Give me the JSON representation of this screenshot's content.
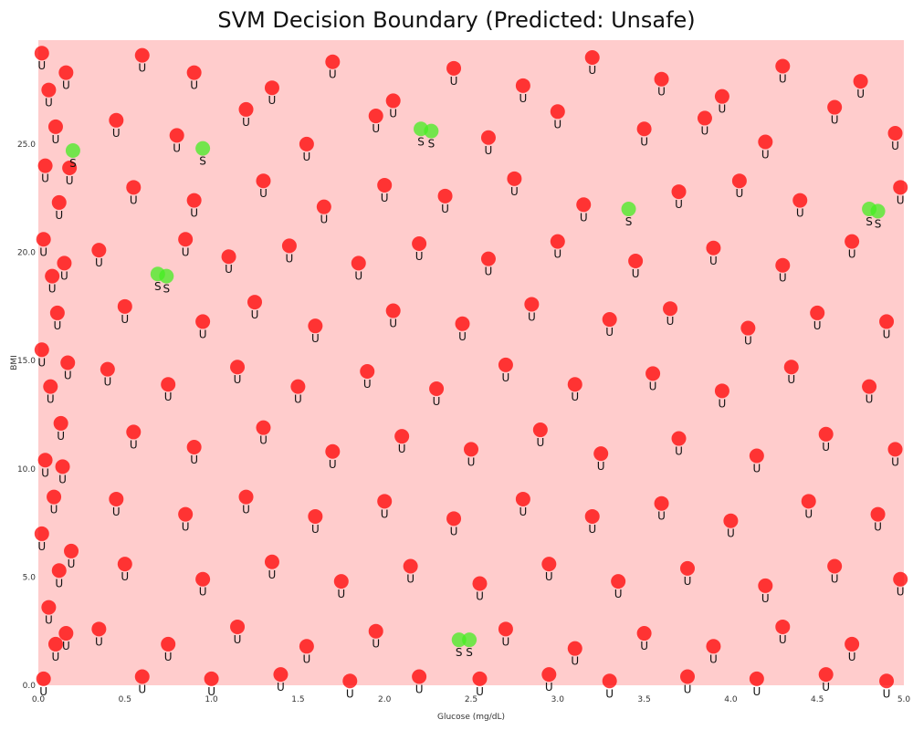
{
  "chart_data": {
    "type": "scatter",
    "title": "SVM Decision Boundary (Predicted: Unsafe)",
    "xlabel": "Glucose (mg/dL)",
    "ylabel": "BMI",
    "xlim": [
      0.0,
      5.0
    ],
    "ylim": [
      0.0,
      29.8
    ],
    "xticks": [
      "0.0",
      "0.5",
      "1.0",
      "1.5",
      "2.0",
      "2.5",
      "3.0",
      "3.5",
      "4.0",
      "4.5",
      "5.0"
    ],
    "yticks": [
      "0.0",
      "5.0",
      "10.0",
      "15.0",
      "20.0",
      "25.0"
    ],
    "background_region": {
      "label": "Unsafe",
      "color": "#ffcccc"
    },
    "grid": false,
    "legend": "none",
    "series": [
      {
        "name": "Safe",
        "marker_label": "S",
        "color": "#44ee22",
        "points": [
          [
            0.2,
            24.7
          ],
          [
            0.95,
            24.8
          ],
          [
            0.69,
            19.0
          ],
          [
            0.74,
            18.9
          ],
          [
            2.21,
            25.7
          ],
          [
            2.27,
            25.6
          ],
          [
            3.41,
            22.0
          ],
          [
            4.8,
            22.0
          ],
          [
            4.85,
            21.9
          ],
          [
            2.43,
            2.1
          ],
          [
            2.49,
            2.1
          ]
        ]
      },
      {
        "name": "Unsafe",
        "marker_label": "U",
        "color": "#ff0000",
        "points": [
          [
            0.6,
            29.1
          ],
          [
            0.9,
            28.3
          ],
          [
            1.35,
            27.6
          ],
          [
            1.7,
            28.8
          ],
          [
            2.05,
            27.0
          ],
          [
            2.4,
            28.5
          ],
          [
            2.8,
            27.7
          ],
          [
            3.2,
            29.0
          ],
          [
            3.6,
            28.0
          ],
          [
            3.95,
            27.2
          ],
          [
            4.3,
            28.6
          ],
          [
            4.75,
            27.9
          ],
          [
            0.45,
            26.1
          ],
          [
            0.8,
            25.4
          ],
          [
            1.2,
            26.6
          ],
          [
            1.55,
            25.0
          ],
          [
            1.95,
            26.3
          ],
          [
            2.6,
            25.3
          ],
          [
            3.0,
            26.5
          ],
          [
            3.5,
            25.7
          ],
          [
            3.85,
            26.2
          ],
          [
            4.2,
            25.1
          ],
          [
            4.6,
            26.7
          ],
          [
            4.95,
            25.5
          ],
          [
            0.55,
            23.0
          ],
          [
            0.9,
            22.4
          ],
          [
            1.3,
            23.3
          ],
          [
            1.65,
            22.1
          ],
          [
            2.0,
            23.1
          ],
          [
            2.35,
            22.6
          ],
          [
            2.75,
            23.4
          ],
          [
            3.15,
            22.2
          ],
          [
            3.7,
            22.8
          ],
          [
            4.05,
            23.3
          ],
          [
            4.4,
            22.4
          ],
          [
            4.98,
            23.0
          ],
          [
            0.35,
            20.1
          ],
          [
            0.85,
            20.6
          ],
          [
            1.1,
            19.8
          ],
          [
            1.45,
            20.3
          ],
          [
            1.85,
            19.5
          ],
          [
            2.2,
            20.4
          ],
          [
            2.6,
            19.7
          ],
          [
            3.0,
            20.5
          ],
          [
            3.45,
            19.6
          ],
          [
            3.9,
            20.2
          ],
          [
            4.3,
            19.4
          ],
          [
            4.7,
            20.5
          ],
          [
            0.5,
            17.5
          ],
          [
            0.95,
            16.8
          ],
          [
            1.25,
            17.7
          ],
          [
            1.6,
            16.6
          ],
          [
            2.05,
            17.3
          ],
          [
            2.45,
            16.7
          ],
          [
            2.85,
            17.6
          ],
          [
            3.3,
            16.9
          ],
          [
            3.65,
            17.4
          ],
          [
            4.1,
            16.5
          ],
          [
            4.5,
            17.2
          ],
          [
            4.9,
            16.8
          ],
          [
            0.4,
            14.6
          ],
          [
            0.75,
            13.9
          ],
          [
            1.15,
            14.7
          ],
          [
            1.5,
            13.8
          ],
          [
            1.9,
            14.5
          ],
          [
            2.3,
            13.7
          ],
          [
            2.7,
            14.8
          ],
          [
            3.1,
            13.9
          ],
          [
            3.55,
            14.4
          ],
          [
            3.95,
            13.6
          ],
          [
            4.35,
            14.7
          ],
          [
            4.8,
            13.8
          ],
          [
            0.55,
            11.7
          ],
          [
            0.9,
            11.0
          ],
          [
            1.3,
            11.9
          ],
          [
            1.7,
            10.8
          ],
          [
            2.1,
            11.5
          ],
          [
            2.5,
            10.9
          ],
          [
            2.9,
            11.8
          ],
          [
            3.25,
            10.7
          ],
          [
            3.7,
            11.4
          ],
          [
            4.15,
            10.6
          ],
          [
            4.55,
            11.6
          ],
          [
            4.95,
            10.9
          ],
          [
            0.45,
            8.6
          ],
          [
            0.85,
            7.9
          ],
          [
            1.2,
            8.7
          ],
          [
            1.6,
            7.8
          ],
          [
            2.0,
            8.5
          ],
          [
            2.4,
            7.7
          ],
          [
            2.8,
            8.6
          ],
          [
            3.2,
            7.8
          ],
          [
            3.6,
            8.4
          ],
          [
            4.0,
            7.6
          ],
          [
            4.45,
            8.5
          ],
          [
            4.85,
            7.9
          ],
          [
            0.5,
            5.6
          ],
          [
            0.95,
            4.9
          ],
          [
            1.35,
            5.7
          ],
          [
            1.75,
            4.8
          ],
          [
            2.15,
            5.5
          ],
          [
            2.55,
            4.7
          ],
          [
            2.95,
            5.6
          ],
          [
            3.35,
            4.8
          ],
          [
            3.75,
            5.4
          ],
          [
            4.2,
            4.6
          ],
          [
            4.6,
            5.5
          ],
          [
            4.98,
            4.9
          ],
          [
            0.35,
            2.6
          ],
          [
            0.75,
            1.9
          ],
          [
            1.15,
            2.7
          ],
          [
            1.55,
            1.8
          ],
          [
            1.95,
            2.5
          ],
          [
            2.7,
            2.6
          ],
          [
            3.1,
            1.7
          ],
          [
            3.5,
            2.4
          ],
          [
            3.9,
            1.8
          ],
          [
            4.3,
            2.7
          ],
          [
            4.7,
            1.9
          ],
          [
            0.6,
            0.4
          ],
          [
            1.0,
            0.3
          ],
          [
            1.4,
            0.5
          ],
          [
            1.8,
            0.2
          ],
          [
            2.2,
            0.4
          ],
          [
            2.55,
            0.3
          ],
          [
            2.95,
            0.5
          ],
          [
            3.3,
            0.2
          ],
          [
            3.75,
            0.4
          ],
          [
            4.15,
            0.3
          ],
          [
            4.55,
            0.5
          ],
          [
            4.9,
            0.2
          ]
        ]
      },
      {
        "name": "Unsafe (dense)",
        "marker_label": "U",
        "color": "#ff0000",
        "points": [
          [
            0.02,
            29.2
          ],
          [
            0.06,
            27.5
          ],
          [
            0.1,
            25.8
          ],
          [
            0.04,
            24.0
          ],
          [
            0.12,
            22.3
          ],
          [
            0.03,
            20.6
          ],
          [
            0.08,
            18.9
          ],
          [
            0.11,
            17.2
          ],
          [
            0.02,
            15.5
          ],
          [
            0.07,
            13.8
          ],
          [
            0.13,
            12.1
          ],
          [
            0.04,
            10.4
          ],
          [
            0.09,
            8.7
          ],
          [
            0.02,
            7.0
          ],
          [
            0.12,
            5.3
          ],
          [
            0.06,
            3.6
          ],
          [
            0.1,
            1.9
          ],
          [
            0.03,
            0.3
          ],
          [
            0.16,
            28.3
          ],
          [
            0.18,
            23.9
          ],
          [
            0.15,
            19.5
          ],
          [
            0.17,
            14.9
          ],
          [
            0.14,
            10.1
          ],
          [
            0.19,
            6.2
          ],
          [
            0.16,
            2.4
          ]
        ]
      }
    ]
  }
}
